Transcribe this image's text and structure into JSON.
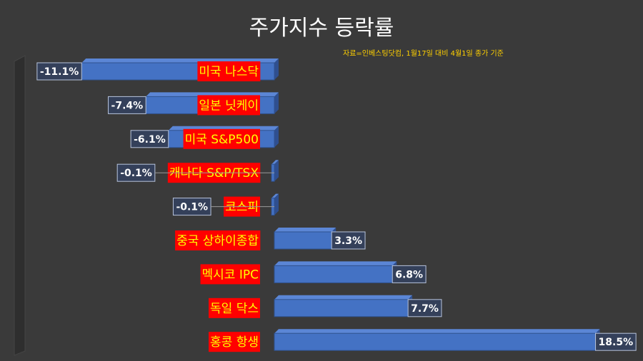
{
  "title": "주가지수 등락률",
  "subtitle": "자료=인베스팅닷컴, 1월17일 대비 4월1일 종가 기준",
  "chart_data": {
    "type": "bar",
    "orientation": "horizontal",
    "categories": [
      "미국 나스닥",
      "일본 닛케이",
      "미국 S&P500",
      "캐나다 S&P/TSX",
      "코스피",
      "중국 상하이종합",
      "멕시코 IPC",
      "독일 닥스",
      "홍콩 항생"
    ],
    "values": [
      -11.1,
      -7.4,
      -6.1,
      -0.1,
      -0.1,
      3.3,
      6.8,
      7.7,
      18.5
    ],
    "value_labels": [
      "-11.1%",
      "-7.4%",
      "-6.1%",
      "-0.1%",
      "-0.1%",
      "3.3%",
      "6.8%",
      "7.7%",
      "18.5%"
    ],
    "unit": "%",
    "xlim": [
      -12,
      19
    ],
    "grid": false,
    "legend": "none",
    "colors": {
      "bar": "#4472c4",
      "bar_top": "#5b86d6",
      "bar_side": "#2f4f8f",
      "label_bg": "#ff0000",
      "label_text": "#ffff00",
      "value_bg": "#34405a",
      "value_text": "#ffffff"
    }
  }
}
